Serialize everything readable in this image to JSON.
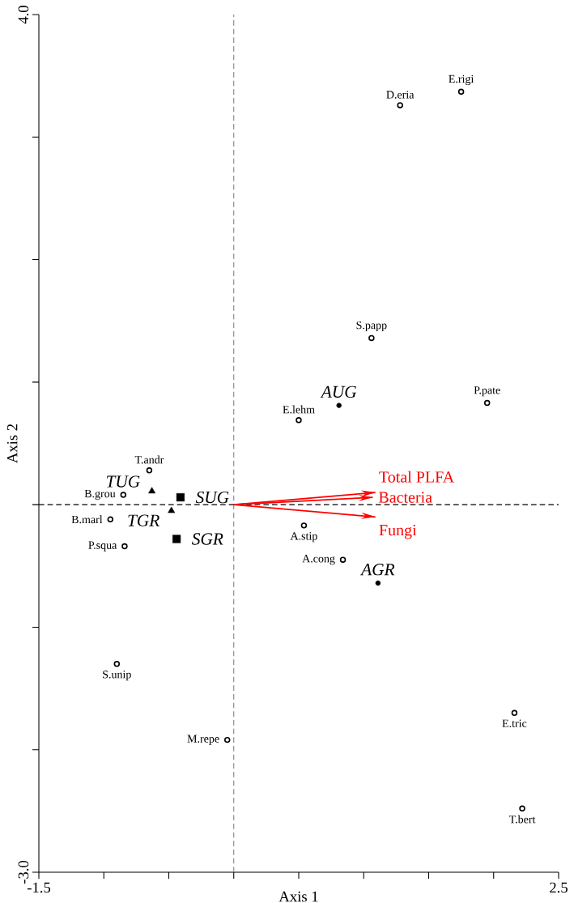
{
  "chart_data": {
    "type": "scatter",
    "xlabel": "Axis 1",
    "ylabel": "Axis 2",
    "xlim": [
      -1.5,
      2.5
    ],
    "ylim": [
      -3,
      4
    ],
    "xticks": [
      -1.5,
      {
        "value": -1,
        "label": null
      },
      {
        "value": -0.5,
        "label": null
      },
      {
        "value": 0,
        "label": null
      },
      {
        "value": 0.5,
        "label": null
      },
      {
        "value": 1,
        "label": null
      },
      {
        "value": 1.5,
        "label": null
      },
      {
        "value": 2,
        "label": null
      },
      2.5
    ],
    "yticks": [
      {
        "value": -3,
        "label": "-3.0"
      },
      {
        "value": -2,
        "label": null
      },
      {
        "value": -1,
        "label": null
      },
      {
        "value": 0,
        "label": null
      },
      {
        "value": 1,
        "label": null
      },
      {
        "value": 2,
        "label": null
      },
      {
        "value": 3,
        "label": null
      },
      {
        "value": 4,
        "label": "4.0"
      }
    ],
    "grid": false,
    "ref_lines": [
      {
        "axis": "x",
        "value": 0,
        "line_style": "dashed",
        "color": "#808080"
      },
      {
        "axis": "y",
        "value": 0,
        "line_style": "dashed",
        "color": "#000000"
      }
    ],
    "series": [
      {
        "marker": "circle",
        "color": "#000000",
        "x": [
          1.28,
          1.75,
          1.06,
          1.95,
          0.5,
          -0.65,
          -0.85,
          -0.95,
          0.54,
          -0.84,
          0.84,
          -0.9,
          -0.05,
          2.16,
          2.22
        ],
        "values": [
          3.26,
          3.37,
          1.36,
          0.83,
          0.69,
          0.28,
          0.08,
          -0.12,
          -0.17,
          -0.34,
          -0.45,
          -1.3,
          -1.92,
          -1.7,
          -2.48
        ]
      },
      {
        "marker": "triangle",
        "color": "#000000",
        "x": [
          -0.63,
          -0.48
        ],
        "values": [
          0.11,
          -0.05
        ]
      },
      {
        "marker": "square",
        "color": "#000000",
        "x": [
          -0.41,
          -0.44
        ],
        "values": [
          0.06,
          -0.28
        ]
      },
      {
        "type": "scatter",
        "marker": "circle",
        "color": "#000000",
        "x": [
          0.81,
          1.11
        ],
        "values": [
          0.81,
          -0.64
        ]
      },
      {
        "type": "line",
        "color": "#ff0000",
        "x": [
          0,
          1.09
        ],
        "values": [
          0,
          0.1
        ]
      },
      {
        "type": "line",
        "color": "#ff0000",
        "x": [
          0,
          1.07
        ],
        "values": [
          0,
          0.06
        ]
      },
      {
        "type": "line",
        "color": "#ff0000",
        "x": [
          0,
          1.09
        ],
        "values": [
          0,
          -0.1
        ]
      }
    ],
    "annotations": [
      {
        "text": "D.eria",
        "x": 1.28,
        "y": 3.26
      },
      {
        "text": "E.rigi",
        "x": 1.75,
        "y": 3.37
      },
      {
        "text": "S.papp",
        "x": 1.06,
        "y": 1.36
      },
      {
        "text": "P.pate",
        "x": 1.95,
        "y": 0.83
      },
      {
        "text": "E.lehm",
        "x": 0.5,
        "y": 0.69
      },
      {
        "text": "T.andr",
        "x": -0.65,
        "y": 0.28
      },
      {
        "text": "B.grou",
        "x": -0.85,
        "y": 0.08
      },
      {
        "text": "B.marl",
        "x": -0.95,
        "y": -0.12
      },
      {
        "text": "A.stip",
        "x": 0.54,
        "y": -0.17
      },
      {
        "text": "P.squa",
        "x": -0.84,
        "y": -0.34
      },
      {
        "text": "A.cong",
        "x": 0.84,
        "y": -0.45
      },
      {
        "text": "S.unip",
        "x": -0.9,
        "y": -1.3
      },
      {
        "text": "M.repe",
        "x": -0.05,
        "y": -1.92
      },
      {
        "text": "E.tric",
        "x": 2.16,
        "y": -1.7
      },
      {
        "text": "T.bert",
        "x": 2.22,
        "y": -2.48
      },
      {
        "text": "TUG",
        "x": -0.63,
        "y": 0.11
      },
      {
        "text": "TGR",
        "x": -0.48,
        "y": -0.05
      },
      {
        "text": "SUG",
        "x": -0.41,
        "y": 0.06
      },
      {
        "text": "SGR",
        "x": -0.44,
        "y": -0.28
      },
      {
        "text": "AUG",
        "x": 0.81,
        "y": 0.81
      },
      {
        "text": "AGR",
        "x": 1.11,
        "y": -0.64
      },
      "Total PLFA",
      "Bacteria",
      "Fungi"
    ]
  }
}
